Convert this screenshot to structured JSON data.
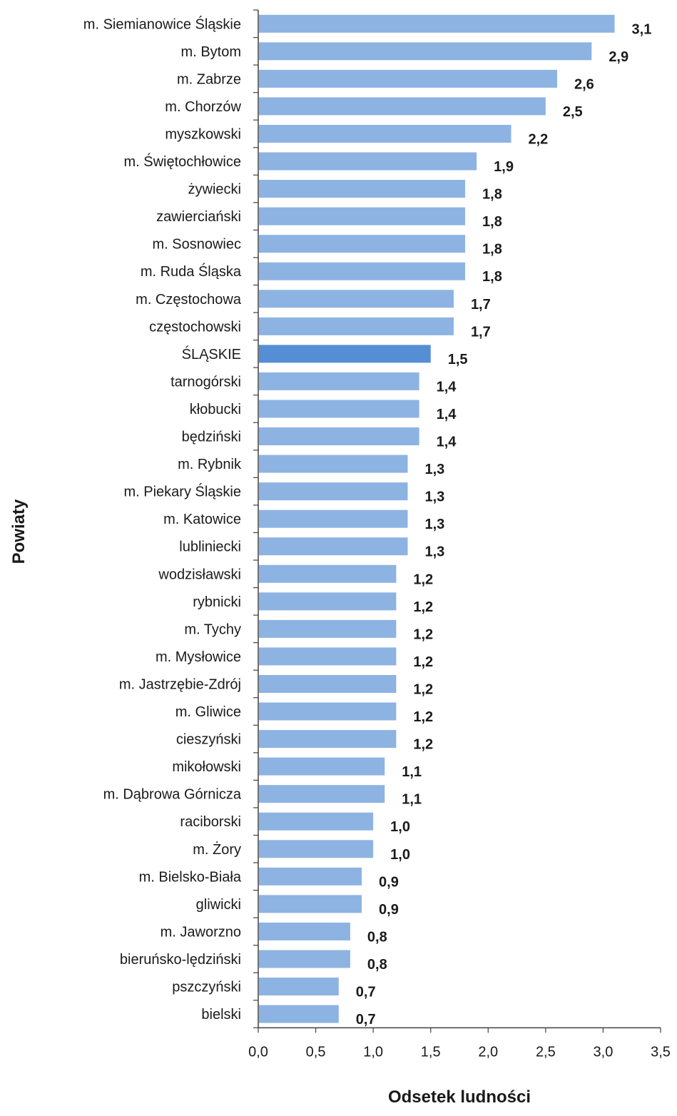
{
  "chart_data": {
    "type": "bar",
    "orientation": "horizontal",
    "xlabel": "Odsetek ludności",
    "ylabel": "Powiaty",
    "xlim": [
      0,
      3.5
    ],
    "xticks": [
      "0,0",
      "0,5",
      "1,0",
      "1,5",
      "2,0",
      "2,5",
      "3,0",
      "3,5"
    ],
    "grid": false,
    "colors": {
      "bar": "#8db3e2",
      "highlight": "#558ed5",
      "axis": "#404040"
    },
    "highlight_category": "ŚLĄSKIE",
    "categories": [
      "m. Siemianowice Śląskie",
      "m. Bytom",
      "m. Zabrze",
      "m. Chorzów",
      "myszkowski",
      "m. Świętochłowice",
      "żywiecki",
      "zawierciański",
      "m. Sosnowiec",
      "m. Ruda Śląska",
      "m. Częstochowa",
      "częstochowski",
      "ŚLĄSKIE",
      "tarnogórski",
      "kłobucki",
      "będziński",
      "m. Rybnik",
      "m. Piekary Śląskie",
      "m. Katowice",
      "lubliniecki",
      "wodzisławski",
      "rybnicki",
      "m. Tychy",
      "m. Mysłowice",
      "m. Jastrzębie-Zdrój",
      "m. Gliwice",
      "cieszyński",
      "mikołowski",
      "m. Dąbrowa Górnicza",
      "raciborski",
      "m. Żory",
      "m. Bielsko-Biała",
      "gliwicki",
      "m. Jaworzno",
      "bieruńsko-lędziński",
      "pszczyński",
      "bielski"
    ],
    "values": [
      3.1,
      2.9,
      2.6,
      2.5,
      2.2,
      1.9,
      1.8,
      1.8,
      1.8,
      1.8,
      1.7,
      1.7,
      1.5,
      1.4,
      1.4,
      1.4,
      1.3,
      1.3,
      1.3,
      1.3,
      1.2,
      1.2,
      1.2,
      1.2,
      1.2,
      1.2,
      1.2,
      1.1,
      1.1,
      1.0,
      1.0,
      0.9,
      0.9,
      0.8,
      0.8,
      0.7,
      0.7
    ],
    "value_labels": [
      "3,1",
      "2,9",
      "2,6",
      "2,5",
      "2,2",
      "1,9",
      "1,8",
      "1,8",
      "1,8",
      "1,8",
      "1,7",
      "1,7",
      "1,5",
      "1,4",
      "1,4",
      "1,4",
      "1,3",
      "1,3",
      "1,3",
      "1,3",
      "1,2",
      "1,2",
      "1,2",
      "1,2",
      "1,2",
      "1,2",
      "1,2",
      "1,1",
      "1,1",
      "1,0",
      "1,0",
      "0,9",
      "0,9",
      "0,8",
      "0,8",
      "0,7",
      "0,7"
    ]
  }
}
